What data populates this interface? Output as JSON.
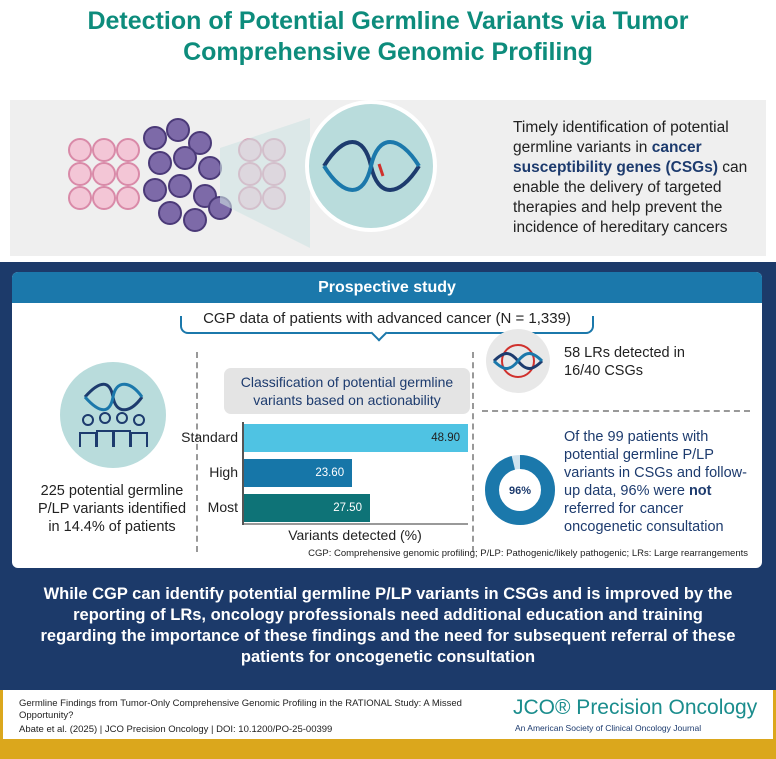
{
  "title": "Detection of Potential Germline Variants via Tumor Comprehensive Genomic Profiling",
  "intro": {
    "text_before": "Timely identification of potential germline variants in ",
    "highlight": "cancer susceptibility genes (CSGs)",
    "text_after": " can enable the delivery of targeted therapies and help prevent the incidence of hereditary cancers"
  },
  "study": {
    "header": "Prospective study",
    "cohort": "CGP data of patients with advanced cancer (N = 1,339)",
    "left_stat": "225 potential germline P/LP variants identified in 14.4% of patients",
    "lr_stat": "58 LRs detected in 16/40 CSGs",
    "referral": {
      "before": "Of the 99 patients with potential germline P/LP variants in CSGs and follow-up data, 96% were ",
      "bold": "not",
      "after": " referred for cancer oncogenetic consultation",
      "donut_label": "96%",
      "donut_value": 96
    },
    "footnote": "CGP: Comprehensive genomic profiling; P/LP: Pathogenic/likely pathogenic; LRs: Large rearrangements"
  },
  "chart_data": {
    "type": "bar",
    "orientation": "horizontal",
    "title": "Classification of potential germline variants based on actionability",
    "categories": [
      "Standard",
      "High",
      "Most"
    ],
    "values": [
      48.9,
      23.6,
      27.5
    ],
    "value_labels": [
      "48.90",
      "23.60",
      "27.50"
    ],
    "colors": [
      "#4fc3e3",
      "#1676a8",
      "#0e7377"
    ],
    "xlabel": "Variants detected (%)",
    "xlim": [
      0,
      48.9
    ]
  },
  "conclusion": "While CGP can identify potential germline P/LP variants in CSGs and is improved by the reporting of LRs, oncology professionals need additional education and training regarding the importance of these findings and the need for subsequent referral of these patients for oncogenetic consultation",
  "footer": {
    "article_title": "Germline Findings from Tumor-Only Comprehensive Genomic Profiling in the RATIONAL Study: A Missed Opportunity?",
    "citation": "Abate et al. (2025) | JCO Precision Oncology | DOI: 10.1200/PO-25-00399",
    "journal_logo": "JCO® Precision Oncology",
    "journal_sub": "An American Society of Clinical Oncology Journal"
  }
}
